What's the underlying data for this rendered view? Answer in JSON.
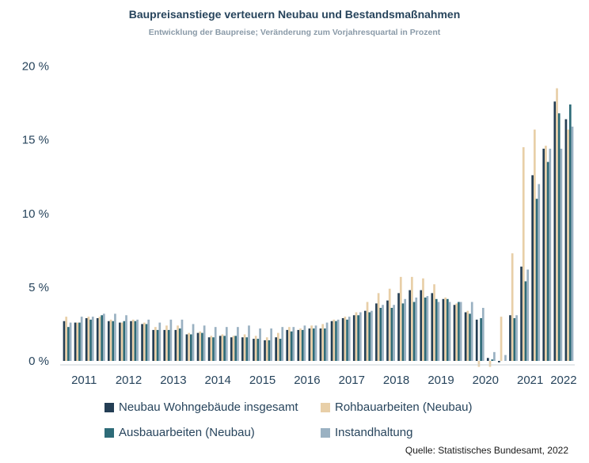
{
  "chart_data": {
    "type": "bar",
    "title": "Baupreisanstiege verteuern Neubau und Bestandsmaßnahmen",
    "subtitle": "Entwicklung der Baupreise; Veränderung zum Vorjahresquartal in Prozent",
    "source": "Quelle: Statistisches Bundesamt, 2022",
    "ylim": [
      -0.5,
      20
    ],
    "yticks": [
      0,
      5,
      10,
      15,
      20
    ],
    "ytick_labels": [
      "0 %",
      "5 %",
      "10 %",
      "15 %",
      "20 %"
    ],
    "year_labels": [
      "2011",
      "2012",
      "2013",
      "2014",
      "2015",
      "2016",
      "2017",
      "2018",
      "2019",
      "2020",
      "2021",
      "2022"
    ],
    "legend_position": "bottom",
    "categories": [
      "2011-Q1",
      "2011-Q2",
      "2011-Q3",
      "2011-Q4",
      "2012-Q1",
      "2012-Q2",
      "2012-Q3",
      "2012-Q4",
      "2013-Q1",
      "2013-Q2",
      "2013-Q3",
      "2013-Q4",
      "2014-Q1",
      "2014-Q2",
      "2014-Q3",
      "2014-Q4",
      "2015-Q1",
      "2015-Q2",
      "2015-Q3",
      "2015-Q4",
      "2016-Q1",
      "2016-Q2",
      "2016-Q3",
      "2016-Q4",
      "2017-Q1",
      "2017-Q2",
      "2017-Q3",
      "2017-Q4",
      "2018-Q1",
      "2018-Q2",
      "2018-Q3",
      "2018-Q4",
      "2019-Q1",
      "2019-Q2",
      "2019-Q3",
      "2019-Q4",
      "2020-Q1",
      "2020-Q2",
      "2020-Q3",
      "2020-Q4",
      "2021-Q1",
      "2021-Q2",
      "2021-Q3",
      "2021-Q4",
      "2022-Q1",
      "2022-Q2"
    ],
    "series": [
      {
        "name": "Neubau Wohngebäude insgesamt",
        "color": "#243e54",
        "values": [
          2.7,
          2.6,
          2.9,
          2.9,
          2.7,
          2.6,
          2.7,
          2.5,
          2.1,
          2.1,
          2.1,
          1.8,
          1.9,
          1.6,
          1.7,
          1.6,
          1.6,
          1.5,
          1.4,
          1.6,
          2.1,
          2.1,
          2.2,
          2.2,
          2.7,
          2.9,
          3.1,
          3.4,
          3.9,
          4.1,
          4.6,
          4.8,
          4.8,
          4.6,
          4.2,
          3.8,
          3.3,
          2.8,
          0.2,
          -0.1,
          3.1,
          6.4,
          12.6,
          14.4,
          17.6,
          16.4
        ]
      },
      {
        "name": "Rohbauarbeiten (Neubau)",
        "color": "#e8cfa8",
        "values": [
          3.0,
          2.6,
          3.0,
          3.0,
          2.8,
          2.6,
          2.8,
          2.6,
          2.3,
          2.4,
          2.4,
          1.9,
          2.0,
          1.7,
          1.8,
          1.7,
          1.8,
          1.7,
          1.6,
          1.9,
          2.3,
          2.2,
          2.4,
          2.5,
          2.8,
          3.0,
          3.3,
          4.0,
          4.6,
          4.9,
          5.7,
          5.7,
          5.6,
          5.2,
          4.3,
          3.9,
          3.4,
          -0.4,
          -0.4,
          3.0,
          7.3,
          14.5,
          15.7,
          14.6,
          18.5,
          15.7
        ]
      },
      {
        "name": "Ausbauarbeiten (Neubau)",
        "color": "#2e6b78",
        "values": [
          2.3,
          2.6,
          2.8,
          3.1,
          2.7,
          2.7,
          2.7,
          2.5,
          2.1,
          2.1,
          2.2,
          1.8,
          1.9,
          1.6,
          1.7,
          1.7,
          1.6,
          1.5,
          1.4,
          1.5,
          2.0,
          2.1,
          2.2,
          2.2,
          2.7,
          2.8,
          3.1,
          3.3,
          3.6,
          3.6,
          3.9,
          4.0,
          4.3,
          4.2,
          4.2,
          4.0,
          3.2,
          2.9,
          0.1,
          0.0,
          2.9,
          5.4,
          11.0,
          13.5,
          16.8,
          17.4
        ]
      },
      {
        "name": "Instandhaltung",
        "color": "#9ab1c2",
        "values": [
          2.6,
          3.0,
          3.0,
          3.2,
          3.2,
          3.1,
          2.8,
          2.8,
          2.6,
          2.8,
          2.8,
          2.5,
          2.4,
          2.3,
          2.3,
          2.3,
          2.4,
          2.2,
          2.2,
          2.3,
          2.3,
          2.4,
          2.4,
          2.6,
          2.8,
          3.0,
          3.3,
          3.4,
          3.8,
          3.8,
          4.2,
          4.3,
          4.4,
          4.0,
          4.0,
          4.0,
          4.0,
          3.6,
          0.6,
          0.4,
          3.1,
          6.2,
          12.0,
          14.4,
          14.4,
          15.9
        ]
      }
    ]
  }
}
